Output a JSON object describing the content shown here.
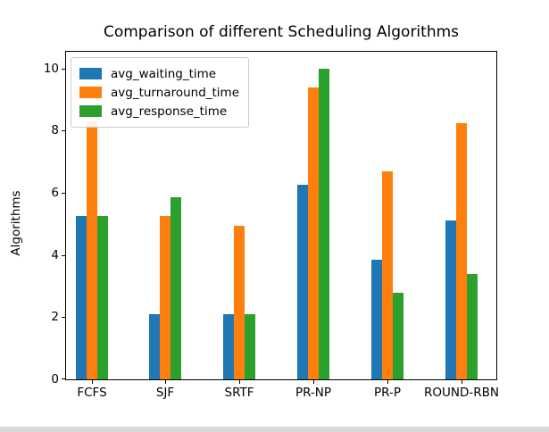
{
  "window": {
    "background": "#ffffff",
    "bottom_bar_color": "#d8d8d8"
  },
  "chart_data": {
    "type": "bar",
    "title": "Comparison of different Scheduling Algorithms",
    "xlabel": "",
    "ylabel": "Algorithms",
    "categories": [
      "FCFS",
      "SJF",
      "SRTF",
      "PR-NP",
      "PR-P",
      "ROUND-RBN"
    ],
    "series": [
      {
        "name": "avg_waiting_time",
        "color": "#1f77b4",
        "values": [
          5.25,
          2.1,
          2.1,
          6.25,
          3.85,
          5.1
        ]
      },
      {
        "name": "avg_turnaround_time",
        "color": "#ff7f0e",
        "values": [
          8.3,
          5.25,
          4.95,
          9.4,
          6.7,
          8.25
        ]
      },
      {
        "name": "avg_response_time",
        "color": "#2ca02c",
        "values": [
          5.25,
          5.85,
          2.1,
          10.0,
          2.8,
          3.4
        ]
      }
    ],
    "yticks": [
      0,
      2,
      4,
      6,
      8,
      10
    ],
    "ylim": [
      0,
      10.54
    ],
    "grid": false,
    "legend_position": "upper left",
    "axis_color": "#000000"
  }
}
